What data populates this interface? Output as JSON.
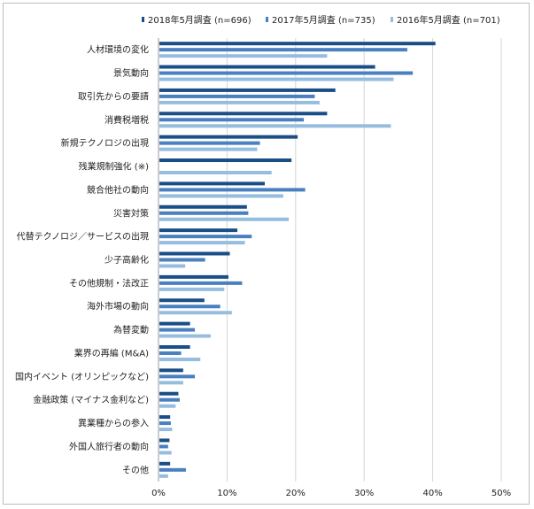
{
  "chart_data": {
    "type": "bar",
    "orientation": "horizontal",
    "categories": [
      "人材環境の変化",
      "景気動向",
      "取引先からの要請",
      "消費税増税",
      "新規テクノロジの出現",
      "残業規制強化 (※)",
      "競合他社の動向",
      "災害対策",
      "代替テクノロジ／サービスの出現",
      "少子高齢化",
      "その他規制・法改正",
      "海外市場の動向",
      "為替変動",
      "業界の再編 (M&A)",
      "国内イベント (オリンピックなど)",
      "金融政策 (マイナス金利など)",
      "異業種からの参入",
      "外国人旅行者の動向",
      "その他"
    ],
    "series": [
      {
        "name": "2018年5月調査 (n=696)",
        "color": "#1a4e86",
        "values": [
          40.4,
          31.6,
          25.8,
          24.6,
          20.3,
          19.4,
          15.5,
          12.9,
          11.5,
          10.4,
          10.2,
          6.7,
          4.6,
          4.6,
          3.6,
          2.9,
          1.7,
          1.6,
          1.7
        ]
      },
      {
        "name": "2017年5月調査 (n=735)",
        "color": "#4a7fc0",
        "values": [
          36.3,
          37.1,
          22.8,
          21.2,
          14.8,
          null,
          21.4,
          13.1,
          13.6,
          6.8,
          12.2,
          9.0,
          5.3,
          3.3,
          5.3,
          3.1,
          1.8,
          1.4,
          4.0
        ]
      },
      {
        "name": "2016年5月調査 (n=701)",
        "color": "#96bde0",
        "values": [
          24.6,
          34.3,
          23.5,
          33.9,
          14.4,
          16.5,
          18.2,
          19.0,
          12.6,
          3.9,
          9.6,
          10.7,
          7.6,
          6.1,
          3.6,
          2.5,
          2.0,
          1.9,
          1.4
        ]
      }
    ],
    "x_ticks": [
      "0%",
      "10%",
      "20%",
      "30%",
      "40%",
      "50%"
    ],
    "xlim": [
      0,
      50
    ],
    "grid": true,
    "legend_position": "top",
    "title": "",
    "xlabel": "",
    "ylabel": ""
  }
}
